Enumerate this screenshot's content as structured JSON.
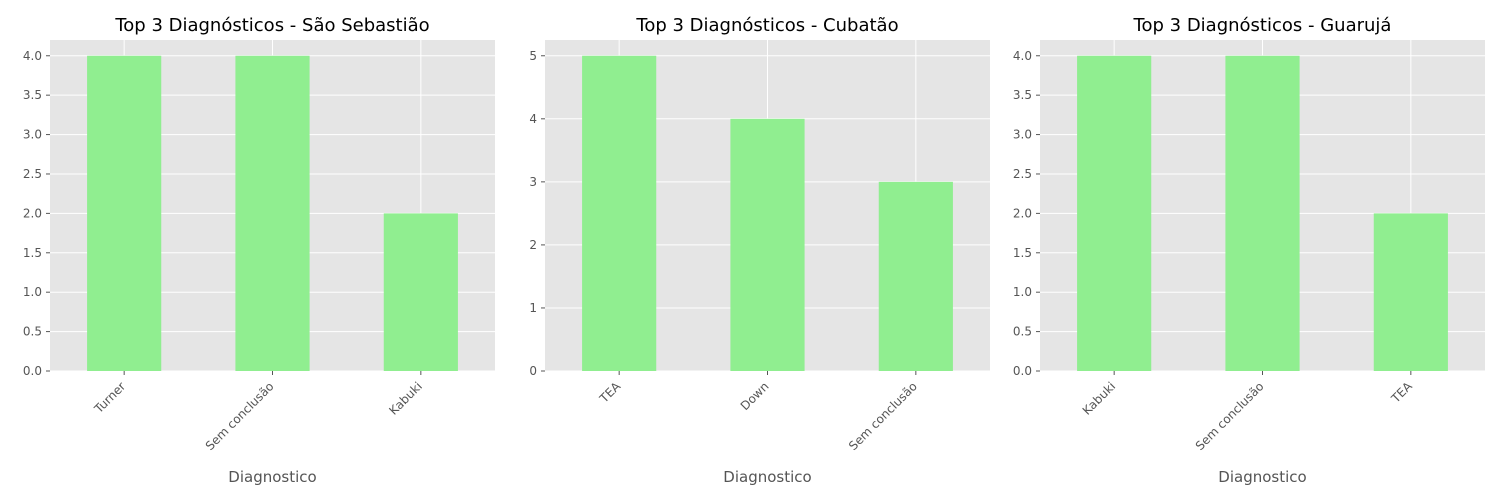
{
  "chart_data": [
    {
      "type": "bar",
      "title": "Top 3 Diagnósticos - São Sebastião",
      "xlabel": "Diagnostico",
      "ylabel": "",
      "categories": [
        "Turner",
        "Sem conclusão",
        "Kabuki"
      ],
      "values": [
        4,
        4,
        2
      ],
      "ylim": [
        0,
        4.2
      ],
      "yticks": [
        "0.0",
        "0.5",
        "1.0",
        "1.5",
        "2.0",
        "2.5",
        "3.0",
        "3.5",
        "4.0"
      ],
      "grid": true,
      "bar_color": "#90ee90",
      "xtick_rotation": 45
    },
    {
      "type": "bar",
      "title": "Top 3 Diagnósticos - Cubatão",
      "xlabel": "Diagnostico",
      "ylabel": "",
      "categories": [
        "TEA",
        "Down",
        "Sem conclusão"
      ],
      "values": [
        5,
        4,
        3
      ],
      "ylim": [
        0,
        5.25
      ],
      "yticks": [
        "0",
        "1",
        "2",
        "3",
        "4",
        "5"
      ],
      "grid": true,
      "bar_color": "#90ee90",
      "xtick_rotation": 45
    },
    {
      "type": "bar",
      "title": "Top 3 Diagnósticos - Guarujá",
      "xlabel": "Diagnostico",
      "ylabel": "",
      "categories": [
        "Kabuki",
        "Sem conclusão",
        "TEA"
      ],
      "values": [
        4,
        4,
        2
      ],
      "ylim": [
        0,
        4.2
      ],
      "yticks": [
        "0.0",
        "0.5",
        "1.0",
        "1.5",
        "2.0",
        "2.5",
        "3.0",
        "3.5",
        "4.0"
      ],
      "grid": true,
      "bar_color": "#90ee90",
      "xtick_rotation": 45
    }
  ]
}
